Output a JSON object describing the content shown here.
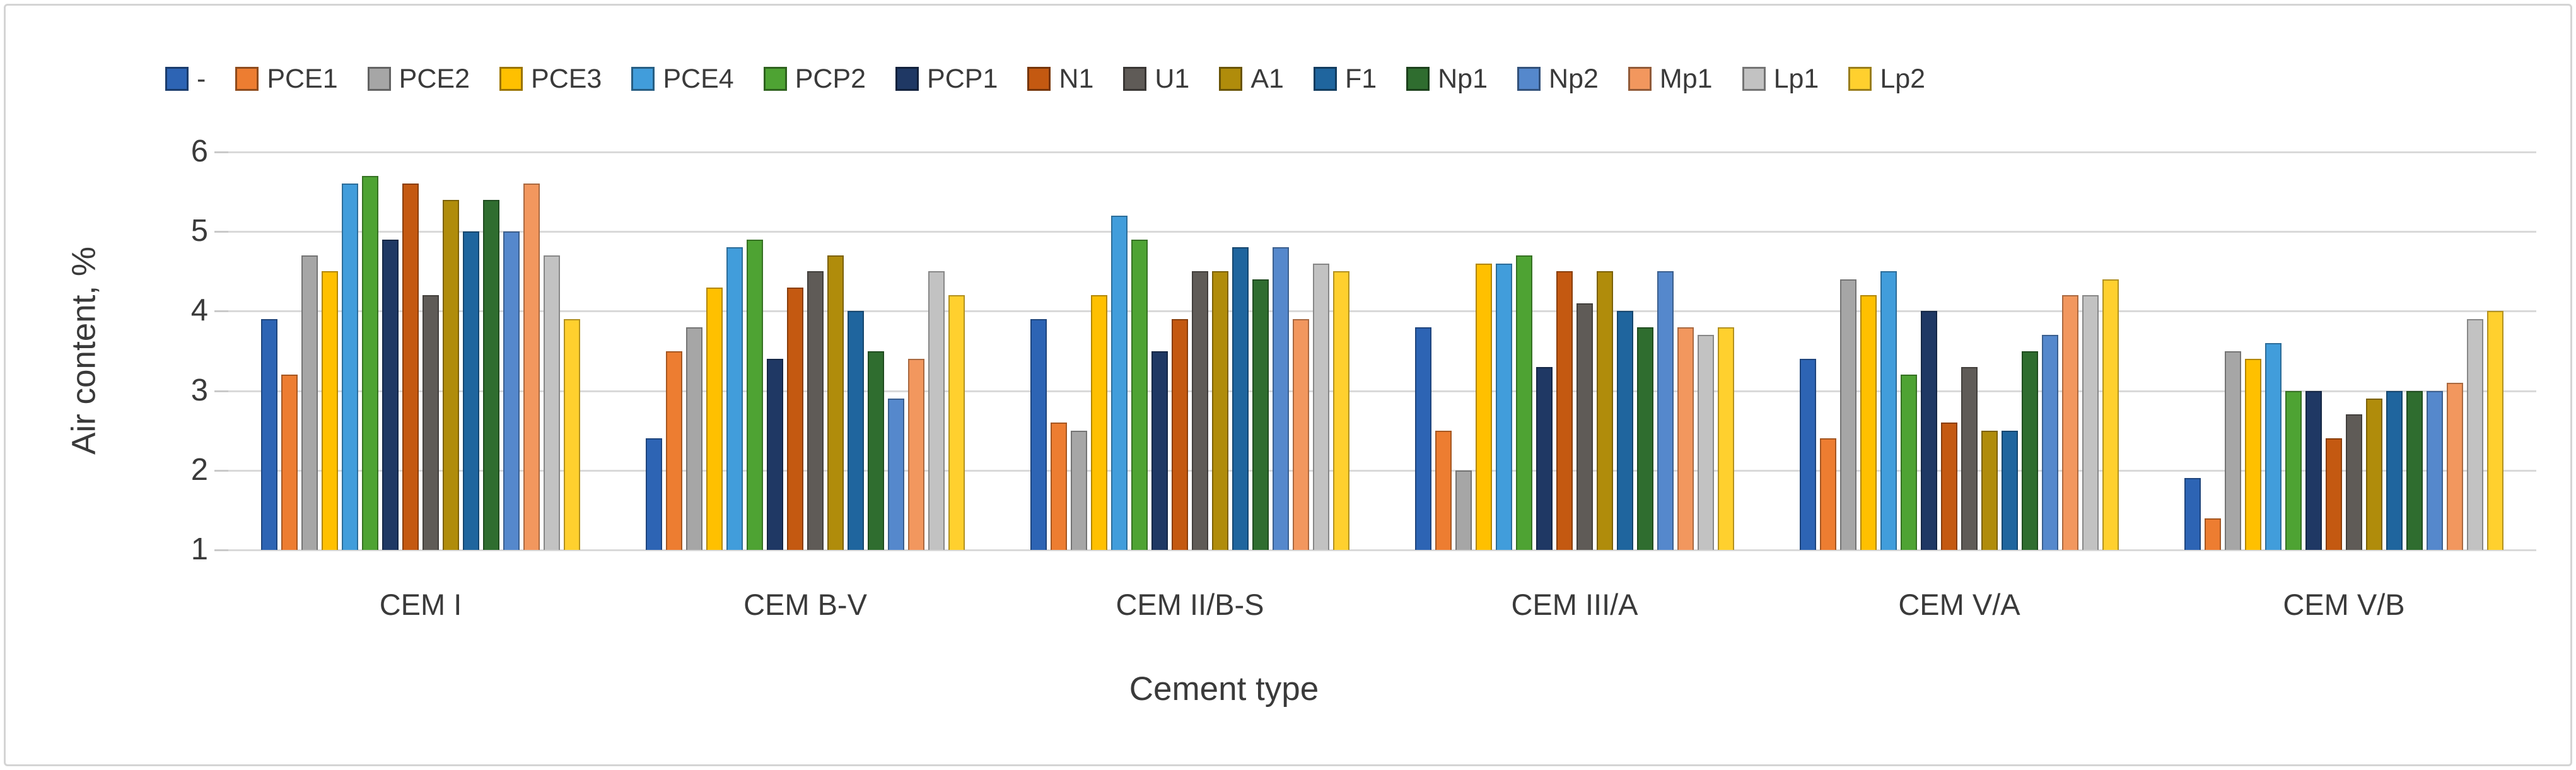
{
  "frame": {
    "background_color": "#ffffff",
    "border_color": "#d4d4d4"
  },
  "colors": {
    "gridline": "#d9d9d9",
    "tick_stub": "#c9c9c9",
    "text": "#3a3a3a",
    "bar_outline": "rgba(0,0,0,0.30)"
  },
  "chart_data": {
    "type": "bar",
    "title": "",
    "xlabel": "Cement type",
    "ylabel": "Air content, %",
    "ylim": [
      1,
      6
    ],
    "yticks": [
      1,
      2,
      3,
      4,
      5,
      6
    ],
    "grid": true,
    "legend_position": "top",
    "bars_start_at": 1,
    "categories": [
      "CEM I",
      "CEM B-V",
      "CEM II/B-S",
      "CEM III/A",
      "CEM V/A",
      "CEM V/B"
    ],
    "series": [
      {
        "name": "-",
        "color": "#2D64B4",
        "values": [
          3.9,
          2.4,
          3.9,
          3.8,
          3.4,
          1.9
        ]
      },
      {
        "name": "PCE1",
        "color": "#ED7D31",
        "values": [
          3.2,
          3.5,
          2.6,
          2.5,
          2.4,
          1.4
        ]
      },
      {
        "name": "PCE2",
        "color": "#A6A6A6",
        "values": [
          4.7,
          3.8,
          2.5,
          2.0,
          4.4,
          3.5
        ]
      },
      {
        "name": "PCE3",
        "color": "#FFC000",
        "values": [
          4.5,
          4.3,
          4.2,
          4.6,
          4.2,
          3.4
        ]
      },
      {
        "name": "PCE4",
        "color": "#419DDB",
        "values": [
          5.6,
          4.8,
          5.2,
          4.6,
          4.5,
          3.6
        ]
      },
      {
        "name": "PCP2",
        "color": "#4EA333",
        "values": [
          5.7,
          4.9,
          4.9,
          4.7,
          3.2,
          3.0
        ]
      },
      {
        "name": "PCP1",
        "color": "#1F3864",
        "values": [
          4.9,
          3.4,
          3.5,
          3.3,
          4.0,
          3.0
        ]
      },
      {
        "name": "N1",
        "color": "#C45911",
        "values": [
          5.6,
          4.3,
          3.9,
          4.5,
          2.6,
          2.4
        ]
      },
      {
        "name": "U1",
        "color": "#5F5B57",
        "values": [
          4.2,
          4.5,
          4.5,
          4.1,
          3.3,
          2.7
        ]
      },
      {
        "name": "A1",
        "color": "#B08C0B",
        "values": [
          5.4,
          4.7,
          4.5,
          4.5,
          2.5,
          2.9
        ]
      },
      {
        "name": "F1",
        "color": "#1F659E",
        "values": [
          5.0,
          4.0,
          4.8,
          4.0,
          2.5,
          3.0
        ]
      },
      {
        "name": "Np1",
        "color": "#2F6D2F",
        "values": [
          5.4,
          3.5,
          4.4,
          3.8,
          3.5,
          3.0
        ]
      },
      {
        "name": "Np2",
        "color": "#5588CC",
        "values": [
          5.0,
          2.9,
          4.8,
          4.5,
          3.7,
          3.0
        ]
      },
      {
        "name": "Mp1",
        "color": "#F2975E",
        "values": [
          5.6,
          3.4,
          3.9,
          3.8,
          4.2,
          3.1
        ]
      },
      {
        "name": "Lp1",
        "color": "#C2C2C2",
        "values": [
          4.7,
          4.5,
          4.6,
          3.7,
          4.2,
          3.9
        ]
      },
      {
        "name": "Lp2",
        "color": "#FFD02E",
        "values": [
          3.9,
          4.2,
          4.5,
          3.8,
          4.4,
          4.0
        ]
      }
    ]
  }
}
